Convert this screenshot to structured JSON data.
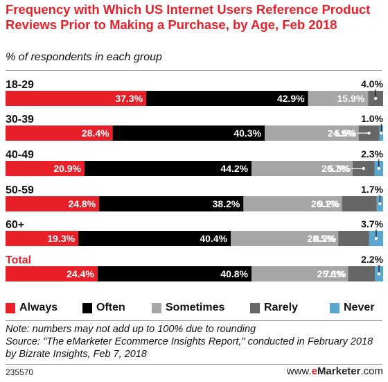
{
  "title": "Frequency with Which US Internet Users Reference Product Reviews Prior to Making a Purchase, by Age, Feb 2018",
  "subtitle": "% of respondents in each group",
  "chart_data": {
    "type": "bar",
    "orientation": "horizontal",
    "stacked": true,
    "unit": "%",
    "categories": [
      "18-29",
      "30-39",
      "40-49",
      "50-59",
      "60+",
      "Total"
    ],
    "series": [
      {
        "name": "Always",
        "color": "#e8202a",
        "values": [
          37.3,
          28.4,
          20.9,
          24.8,
          19.3,
          24.4
        ]
      },
      {
        "name": "Often",
        "color": "#000000",
        "values": [
          42.9,
          40.3,
          44.2,
          38.2,
          40.4,
          40.8
        ]
      },
      {
        "name": "Sometimes",
        "color": "#a6a6a6",
        "values": [
          15.9,
          24.9,
          26.7,
          26.1,
          28.5,
          25.6
        ]
      },
      {
        "name": "Rarely",
        "color": "#666666",
        "values": [
          4.0,
          5.5,
          5.8,
          9.2,
          8.2,
          7.1
        ]
      },
      {
        "name": "Never",
        "color": "#5aa6cf",
        "values": [
          0.0,
          1.0,
          2.3,
          1.7,
          3.7,
          2.2
        ]
      }
    ],
    "data_labels": [
      [
        "37.3%",
        "42.9%",
        "15.9%",
        "4.0%",
        ""
      ],
      [
        "28.4%",
        "40.3%",
        "24.9%",
        "5.5%",
        "1.0%"
      ],
      [
        "20.9%",
        "44.2%",
        "26.7%",
        "5.8%",
        "2.3%"
      ],
      [
        "24.8%",
        "38.2%",
        "26.1%",
        "9.2%",
        "1.7%"
      ],
      [
        "19.3%",
        "40.4%",
        "28.5%",
        "8.2%",
        "3.7%"
      ],
      [
        "24.4%",
        "40.8%",
        "25.6%",
        "7.1%",
        "2.2%"
      ]
    ],
    "total_category": "Total",
    "legend_position": "bottom"
  },
  "note": "Note: numbers may not add up to 100% due to rounding",
  "source": "Source: \"The eMarketer Ecommerce Insights Report,\" conducted in February 2018 by Bizrate Insights, Feb 7, 2018",
  "footer_id": "235570",
  "brand": {
    "prefix": "www.",
    "e": "e",
    "rest": "Marketer",
    "suffix": ".com"
  }
}
